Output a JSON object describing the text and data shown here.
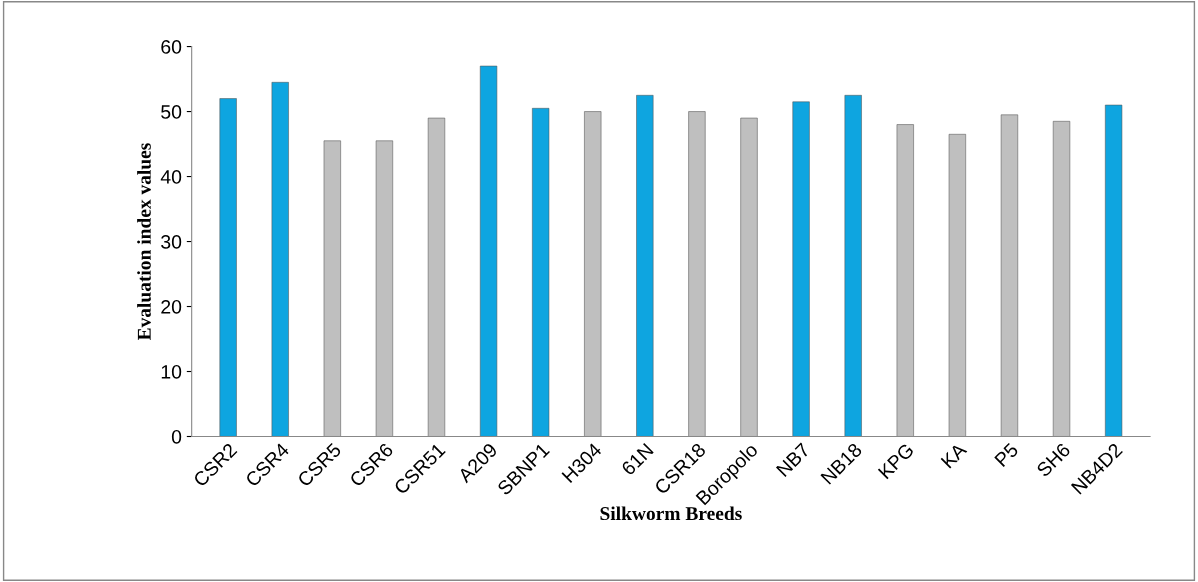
{
  "chart_data": {
    "type": "bar",
    "xlabel": "Silkworm Breeds",
    "ylabel": "Evaluation index values",
    "categories": [
      "CSR2",
      "CSR4",
      "CSR5",
      "CSR6",
      "CSR51",
      "A209",
      "SBNP1",
      "H304",
      "61N",
      "CSR18",
      "Boropolo",
      "NB7",
      "NB18",
      "KPG",
      "KA",
      "P5",
      "SH6",
      "NB4D2"
    ],
    "values": [
      52,
      54.5,
      45.5,
      45.5,
      49,
      57,
      50.5,
      50,
      52.5,
      50,
      49,
      51.5,
      52.5,
      48,
      46.5,
      49.5,
      48.5,
      51
    ],
    "colors": [
      "#0ea5e0",
      "#0ea5e0",
      "#bfbfbf",
      "#bfbfbf",
      "#bfbfbf",
      "#0ea5e0",
      "#0ea5e0",
      "#bfbfbf",
      "#0ea5e0",
      "#bfbfbf",
      "#bfbfbf",
      "#0ea5e0",
      "#0ea5e0",
      "#bfbfbf",
      "#bfbfbf",
      "#bfbfbf",
      "#bfbfbf",
      "#0ea5e0"
    ],
    "ylim": [
      0,
      60
    ],
    "yticks": [
      0,
      10,
      20,
      30,
      40,
      50,
      60
    ],
    "grid": false,
    "legend": false
  }
}
